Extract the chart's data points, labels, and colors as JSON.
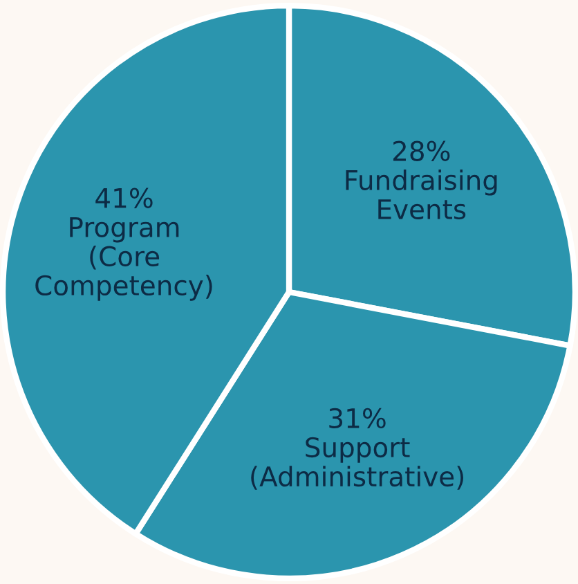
{
  "chart_data": {
    "type": "pie",
    "categories": [
      "Fundraising\nEvents",
      "Support\n(Administrative)",
      "Program\n(Core\nCompetency)"
    ],
    "values": [
      28,
      31,
      41
    ],
    "value_labels": [
      "28%",
      "31%",
      "41%"
    ],
    "colors": [
      "#2b95ae",
      "#2b95ae",
      "#2b95ae"
    ]
  }
}
